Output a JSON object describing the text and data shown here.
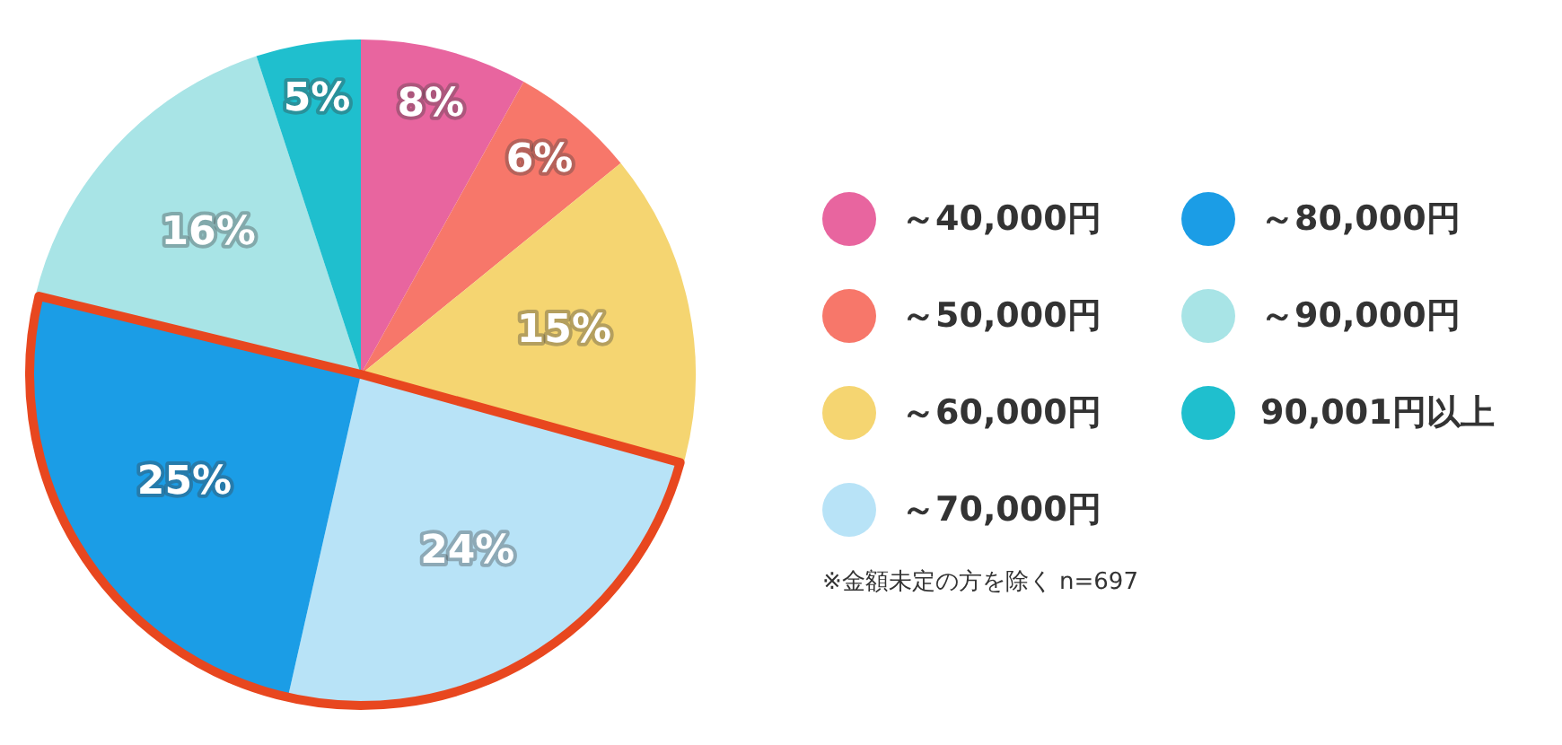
{
  "chart_data": {
    "type": "pie",
    "categories": [
      "～40,000円",
      "～50,000円",
      "～60,000円",
      "～70,000円",
      "～80,000円",
      "～90,000円",
      "90,001円以上"
    ],
    "values": [
      8,
      6,
      15,
      24,
      25,
      16,
      5
    ],
    "colors": [
      "#e8659f",
      "#f7776a",
      "#f5d571",
      "#b8e3f7",
      "#1b9de6",
      "#a8e4e6",
      "#1fbfce"
    ],
    "value_labels": [
      "8%",
      "6%",
      "15%",
      "24%",
      "25%",
      "16%",
      "5%"
    ],
    "legend": "right",
    "annotations": [
      "※金額未定の方を除く n=697"
    ]
  }
}
